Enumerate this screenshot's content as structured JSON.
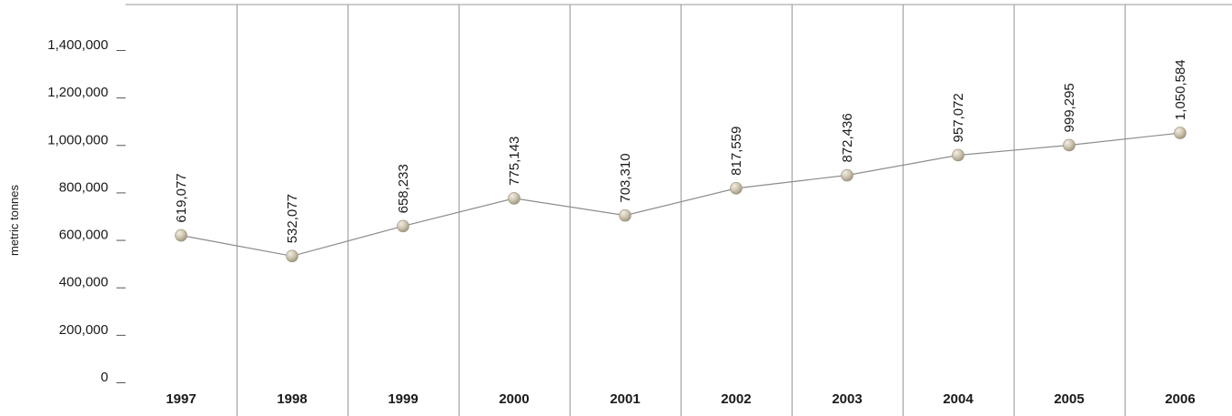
{
  "chart_data": {
    "type": "line",
    "title": "",
    "xlabel": "",
    "ylabel": "metric tonnes",
    "ylim": [
      0,
      1400000
    ],
    "grid": "vertical separators between years",
    "categories": [
      "1997",
      "1998",
      "1999",
      "2000",
      "2001",
      "2002",
      "2003",
      "2004",
      "2005",
      "2006"
    ],
    "values": [
      619077,
      532077,
      658233,
      775143,
      703310,
      817559,
      872436,
      957072,
      999295,
      1050584
    ],
    "value_labels": [
      "619,077",
      "532,077",
      "658,233",
      "775,143",
      "703,310",
      "817,559",
      "872,436",
      "957,072",
      "999,295",
      "1,050,584"
    ],
    "yticks": [
      0,
      200000,
      400000,
      600000,
      800000,
      1000000,
      1200000,
      1400000
    ],
    "ytick_labels": [
      "0",
      "200,000",
      "400,000",
      "600,000",
      "800,000",
      "1,000,000",
      "1,200,000",
      "1,400,000"
    ],
    "colors": {
      "line": "#8c8c8c",
      "marker": "#cbc2ad",
      "marker_highlight": "#f2eee4",
      "marker_shadow": "#9c927c",
      "grid": "#9a9a9a"
    }
  }
}
